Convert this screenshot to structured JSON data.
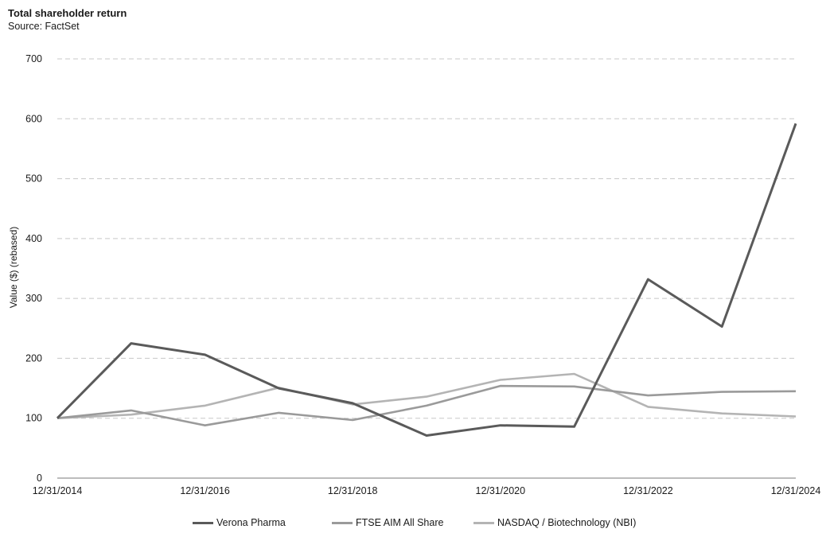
{
  "chart_data": {
    "type": "line",
    "title": "Total shareholder return",
    "subtitle": "Source: FactSet",
    "ylabel": "Value ($) (rebased)",
    "xlabel": "",
    "ylim": [
      0,
      700
    ],
    "yticks": [
      0,
      100,
      200,
      300,
      400,
      500,
      600,
      700
    ],
    "x": [
      "12/31/2014",
      "12/31/2015",
      "12/31/2016",
      "12/31/2017",
      "12/31/2018",
      "12/31/2019",
      "12/31/2020",
      "12/31/2021",
      "12/31/2022",
      "12/31/2023",
      "12/31/2024"
    ],
    "xtick_labels": [
      "12/31/2014",
      "12/31/2016",
      "12/31/2018",
      "12/31/2020",
      "12/31/2022",
      "12/31/2024"
    ],
    "grid": true,
    "legend_position": "bottom",
    "series": [
      {
        "name": "Verona Pharma",
        "color": "#5a5a5a",
        "values": [
          100,
          225,
          206,
          150,
          125,
          71,
          88,
          86,
          332,
          253,
          592
        ]
      },
      {
        "name": "FTSE AIM All Share",
        "color": "#9a9a9a",
        "values": [
          100,
          113,
          88,
          109,
          97,
          121,
          154,
          153,
          138,
          144,
          145
        ]
      },
      {
        "name": "NASDAQ / Biotechnology (NBI)",
        "color": "#b4b4b4",
        "values": [
          100,
          106,
          121,
          151,
          123,
          136,
          164,
          174,
          119,
          108,
          103
        ]
      }
    ]
  }
}
